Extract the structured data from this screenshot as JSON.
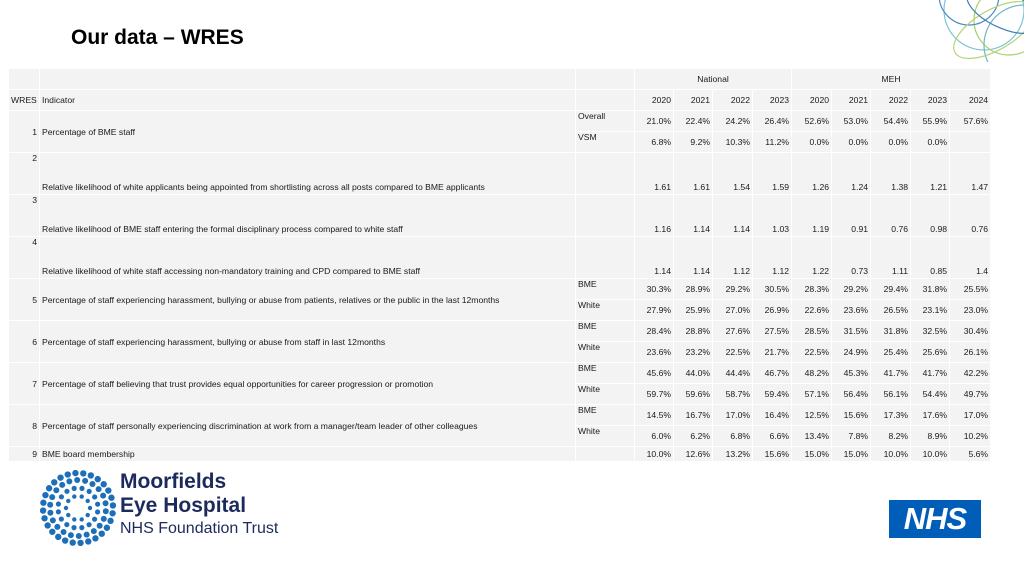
{
  "page": {
    "title": "Our data – WRES"
  },
  "table": {
    "group_headers": {
      "national": "National",
      "meh": "MEH"
    },
    "col_wres": "WRES",
    "col_indicator": "Indicator",
    "years": [
      "2020",
      "2021",
      "2022",
      "2023",
      "2020",
      "2021",
      "2022",
      "2023",
      "2024"
    ],
    "rows": [
      {
        "num": "1",
        "indicator": "Percentage of BME staff",
        "sub": [
          {
            "label": "Overall",
            "values": [
              "21.0%",
              "22.4%",
              "24.2%",
              "26.4%",
              "52.6%",
              "53.0%",
              "54.4%",
              "55.9%",
              "57.6%"
            ]
          },
          {
            "label": "VSM",
            "values": [
              "6.8%",
              "9.2%",
              "10.3%",
              "11.2%",
              "0.0%",
              "0.0%",
              "0.0%",
              "0.0%",
              ""
            ]
          }
        ]
      },
      {
        "num": "2",
        "indicator": "Relative likelihood of white applicants being appointed from shortlisting across all posts compared to BME applicants",
        "values": [
          "1.61",
          "1.61",
          "1.54",
          "1.59",
          "1.26",
          "1.24",
          "1.38",
          "1.21",
          "1.47"
        ]
      },
      {
        "num": "3",
        "indicator": "Relative likelihood of BME staff entering the formal disciplinary process compared to white staff",
        "values": [
          "1.16",
          "1.14",
          "1.14",
          "1.03",
          "1.19",
          "0.91",
          "0.76",
          "0.98",
          "0.76"
        ]
      },
      {
        "num": "4",
        "indicator": "Relative likelihood of white staff accessing non-mandatory training and CPD compared to BME staff",
        "values": [
          "1.14",
          "1.14",
          "1.12",
          "1.12",
          "1.22",
          "0.73",
          "1.11",
          "0.85",
          "1.4"
        ]
      },
      {
        "num": "5",
        "indicator": "Percentage of staff experiencing harassment, bullying or abuse from patients, relatives or the public in the last 12months",
        "sub": [
          {
            "label": "BME",
            "values": [
              "30.3%",
              "28.9%",
              "29.2%",
              "30.5%",
              "28.3%",
              "29.2%",
              "29.4%",
              "31.8%",
              "25.5%"
            ]
          },
          {
            "label": "White",
            "values": [
              "27.9%",
              "25.9%",
              "27.0%",
              "26.9%",
              "22.6%",
              "23.6%",
              "26.5%",
              "23.1%",
              "23.0%"
            ]
          }
        ]
      },
      {
        "num": "6",
        "indicator": "Percentage of staff experiencing harassment, bullying or abuse from staff in last 12months",
        "sub": [
          {
            "label": "BME",
            "values": [
              "28.4%",
              "28.8%",
              "27.6%",
              "27.5%",
              "28.5%",
              "31.5%",
              "31.8%",
              "32.5%",
              "30.4%"
            ]
          },
          {
            "label": "White",
            "values": [
              "23.6%",
              "23.2%",
              "22.5%",
              "21.7%",
              "22.5%",
              "24.9%",
              "25.4%",
              "25.6%",
              "26.1%"
            ]
          }
        ]
      },
      {
        "num": "7",
        "indicator": "Percentage of staff believing that trust provides equal opportunities for career progression or promotion",
        "sub": [
          {
            "label": "BME",
            "values": [
              "45.6%",
              "44.0%",
              "44.4%",
              "46.7%",
              "48.2%",
              "45.3%",
              "41.7%",
              "41.7%",
              "42.2%"
            ]
          },
          {
            "label": "White",
            "values": [
              "59.7%",
              "59.6%",
              "58.7%",
              "59.4%",
              "57.1%",
              "56.4%",
              "56.1%",
              "54.4%",
              "49.7%"
            ]
          }
        ]
      },
      {
        "num": "8",
        "indicator": "Percentage of staff personally experiencing discrimination at work from a manager/team leader of other colleagues",
        "sub": [
          {
            "label": "BME",
            "values": [
              "14.5%",
              "16.7%",
              "17.0%",
              "16.4%",
              "12.5%",
              "15.6%",
              "17.3%",
              "17.6%",
              "17.0%"
            ]
          },
          {
            "label": "White",
            "values": [
              "6.0%",
              "6.2%",
              "6.8%",
              "6.6%",
              "13.4%",
              "7.8%",
              "8.2%",
              "8.9%",
              "10.2%"
            ]
          }
        ]
      },
      {
        "num": "9",
        "indicator": "BME board membership",
        "values": [
          "10.0%",
          "12.6%",
          "13.2%",
          "15.6%",
          "15.0%",
          "15.0%",
          "10.0%",
          "10.0%",
          "5.6%"
        ]
      }
    ]
  },
  "logo": {
    "line1": "Moorfields",
    "line2": "Eye Hospital",
    "line3": "NHS Foundation Trust"
  },
  "nhs_logo": {
    "text": "NHS",
    "color": "#005eb8"
  },
  "colors": {
    "table_bg": "#f3f3f3",
    "logo_text": "#1d2a5c",
    "logo_dots": "#1e6fb8"
  }
}
